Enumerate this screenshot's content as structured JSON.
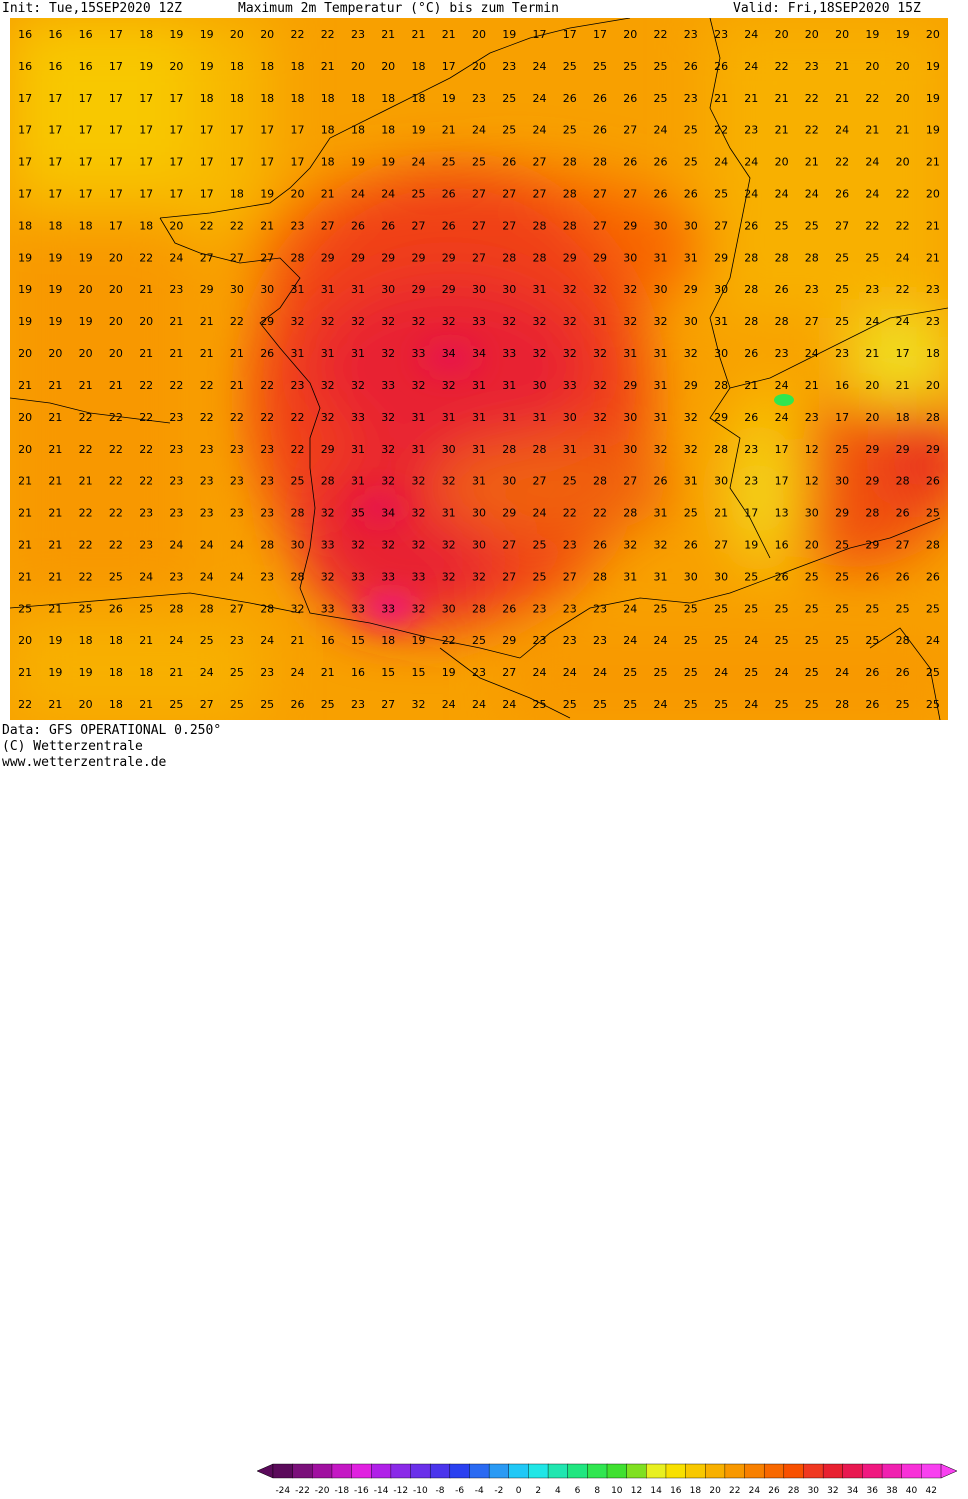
{
  "header": {
    "init": "Init: Tue,15SEP2020 12Z",
    "title": "Maximum 2m Temperatur (°C) bis zum Termin",
    "valid": "Valid: Fri,18SEP2020 15Z"
  },
  "footer": {
    "data_line": "Data: GFS OPERATIONAL 0.250°",
    "copyright": "(C) Wetterzentrale",
    "url": "www.wetterzentrale.de"
  },
  "legend": {
    "labels": [
      "-24",
      "-22",
      "-20",
      "-18",
      "-16",
      "-14",
      "-12",
      "-10",
      "-8",
      "-6",
      "-4",
      "-2",
      "0",
      "2",
      "4",
      "6",
      "8",
      "10",
      "12",
      "14",
      "16",
      "18",
      "20",
      "22",
      "24",
      "26",
      "28",
      "30",
      "32",
      "34",
      "36",
      "38",
      "40",
      "42"
    ],
    "colors": [
      "#5a0a5a",
      "#7a107a",
      "#a010a0",
      "#c418c4",
      "#e020e0",
      "#b020e8",
      "#8a2ae8",
      "#6a30ea",
      "#4a34ec",
      "#2a40f0",
      "#2a6af2",
      "#2a9af4",
      "#20c8f6",
      "#20e6e6",
      "#20e6b0",
      "#20e680",
      "#30e650",
      "#40e030",
      "#80e020",
      "#e8f020",
      "#f8e000",
      "#f8c800",
      "#f8b000",
      "#f89800",
      "#f88000",
      "#f86800",
      "#f85000",
      "#f03820",
      "#e82030",
      "#e81850",
      "#f01880",
      "#f020b0",
      "#f830d8",
      "#f840f0"
    ]
  },
  "map_grid": [
    [
      "16",
      "16",
      "16",
      "17",
      "18",
      "19",
      "19",
      "20",
      "20",
      "22",
      "22",
      "23",
      "21",
      "21",
      "21",
      "20",
      "19",
      "17",
      "17",
      "17",
      "20",
      "22",
      "23",
      "23",
      "24",
      "20",
      "20",
      "20",
      "19",
      "19",
      "20"
    ],
    [
      "16",
      "16",
      "16",
      "17",
      "19",
      "20",
      "19",
      "18",
      "18",
      "18",
      "21",
      "20",
      "20",
      "18",
      "17",
      "20",
      "23",
      "24",
      "25",
      "25",
      "25",
      "25",
      "26",
      "26",
      "24",
      "22",
      "23",
      "21",
      "20",
      "20",
      "19"
    ],
    [
      "17",
      "17",
      "17",
      "17",
      "17",
      "17",
      "18",
      "18",
      "18",
      "18",
      "18",
      "18",
      "18",
      "18",
      "19",
      "23",
      "25",
      "24",
      "26",
      "26",
      "26",
      "25",
      "23",
      "21",
      "21",
      "21",
      "22",
      "21",
      "22",
      "20",
      "19"
    ],
    [
      "17",
      "17",
      "17",
      "17",
      "17",
      "17",
      "17",
      "17",
      "17",
      "17",
      "18",
      "18",
      "18",
      "19",
      "21",
      "24",
      "25",
      "24",
      "25",
      "26",
      "27",
      "24",
      "25",
      "22",
      "23",
      "21",
      "22",
      "24",
      "21",
      "21",
      "19"
    ],
    [
      "17",
      "17",
      "17",
      "17",
      "17",
      "17",
      "17",
      "17",
      "17",
      "17",
      "18",
      "19",
      "19",
      "24",
      "25",
      "25",
      "26",
      "27",
      "28",
      "28",
      "26",
      "26",
      "25",
      "24",
      "24",
      "20",
      "21",
      "22",
      "24",
      "20",
      "21"
    ],
    [
      "17",
      "17",
      "17",
      "17",
      "17",
      "17",
      "17",
      "18",
      "19",
      "20",
      "21",
      "24",
      "24",
      "25",
      "26",
      "27",
      "27",
      "27",
      "28",
      "27",
      "27",
      "26",
      "26",
      "25",
      "24",
      "24",
      "24",
      "26",
      "24",
      "22",
      "20"
    ],
    [
      "18",
      "18",
      "18",
      "17",
      "18",
      "20",
      "22",
      "22",
      "21",
      "23",
      "27",
      "26",
      "26",
      "27",
      "26",
      "27",
      "27",
      "28",
      "28",
      "27",
      "29",
      "30",
      "30",
      "27",
      "26",
      "25",
      "25",
      "27",
      "22",
      "22",
      "21"
    ],
    [
      "19",
      "19",
      "19",
      "20",
      "22",
      "24",
      "27",
      "27",
      "27",
      "28",
      "29",
      "29",
      "29",
      "29",
      "29",
      "27",
      "28",
      "28",
      "29",
      "29",
      "30",
      "31",
      "31",
      "29",
      "28",
      "28",
      "28",
      "25",
      "25",
      "24",
      "21"
    ],
    [
      "19",
      "19",
      "20",
      "20",
      "21",
      "23",
      "29",
      "30",
      "30",
      "31",
      "31",
      "31",
      "30",
      "29",
      "29",
      "30",
      "30",
      "31",
      "32",
      "32",
      "32",
      "30",
      "29",
      "30",
      "28",
      "26",
      "23",
      "25",
      "23",
      "22",
      "23"
    ],
    [
      "19",
      "19",
      "19",
      "20",
      "20",
      "21",
      "21",
      "22",
      "29",
      "32",
      "32",
      "32",
      "32",
      "32",
      "32",
      "33",
      "32",
      "32",
      "32",
      "31",
      "32",
      "32",
      "30",
      "31",
      "28",
      "28",
      "27",
      "25",
      "24",
      "24",
      "23"
    ],
    [
      "20",
      "20",
      "20",
      "20",
      "21",
      "21",
      "21",
      "21",
      "26",
      "31",
      "31",
      "31",
      "32",
      "33",
      "34",
      "34",
      "33",
      "32",
      "32",
      "32",
      "31",
      "31",
      "32",
      "30",
      "26",
      "23",
      "24",
      "23",
      "21",
      "17",
      "18"
    ],
    [
      "21",
      "21",
      "21",
      "21",
      "22",
      "22",
      "22",
      "21",
      "22",
      "23",
      "32",
      "32",
      "33",
      "32",
      "32",
      "31",
      "31",
      "30",
      "33",
      "32",
      "29",
      "31",
      "29",
      "28",
      "21",
      "24",
      "21",
      "16",
      "20",
      "21",
      "20"
    ],
    [
      "20",
      "21",
      "22",
      "22",
      "22",
      "23",
      "22",
      "22",
      "22",
      "22",
      "32",
      "33",
      "32",
      "31",
      "31",
      "31",
      "31",
      "31",
      "30",
      "32",
      "30",
      "31",
      "32",
      "29",
      "26",
      "24",
      "23",
      "17",
      "20",
      "18",
      "28"
    ],
    [
      "20",
      "21",
      "22",
      "22",
      "22",
      "23",
      "23",
      "23",
      "23",
      "22",
      "29",
      "31",
      "32",
      "31",
      "30",
      "31",
      "28",
      "28",
      "31",
      "31",
      "30",
      "32",
      "32",
      "28",
      "23",
      "17",
      "12",
      "25",
      "29",
      "29",
      "29"
    ],
    [
      "21",
      "21",
      "21",
      "22",
      "22",
      "23",
      "23",
      "23",
      "23",
      "25",
      "28",
      "31",
      "32",
      "32",
      "32",
      "31",
      "30",
      "27",
      "25",
      "28",
      "27",
      "26",
      "31",
      "30",
      "23",
      "17",
      "12",
      "30",
      "29",
      "28",
      "26"
    ],
    [
      "21",
      "21",
      "22",
      "22",
      "23",
      "23",
      "23",
      "23",
      "23",
      "28",
      "32",
      "35",
      "34",
      "32",
      "31",
      "30",
      "29",
      "24",
      "22",
      "22",
      "28",
      "31",
      "25",
      "21",
      "17",
      "13",
      "30",
      "29",
      "28",
      "26",
      "25"
    ],
    [
      "21",
      "21",
      "22",
      "22",
      "23",
      "24",
      "24",
      "24",
      "28",
      "30",
      "33",
      "32",
      "32",
      "32",
      "32",
      "30",
      "27",
      "25",
      "23",
      "26",
      "32",
      "32",
      "26",
      "27",
      "19",
      "16",
      "20",
      "25",
      "29",
      "27",
      "28"
    ],
    [
      "21",
      "21",
      "22",
      "25",
      "24",
      "23",
      "24",
      "24",
      "23",
      "28",
      "32",
      "33",
      "33",
      "33",
      "32",
      "32",
      "27",
      "25",
      "27",
      "28",
      "31",
      "31",
      "30",
      "30",
      "25",
      "26",
      "25",
      "25",
      "26",
      "26",
      "26"
    ],
    [
      "25",
      "21",
      "25",
      "26",
      "25",
      "28",
      "28",
      "27",
      "28",
      "32",
      "33",
      "33",
      "33",
      "32",
      "30",
      "28",
      "26",
      "23",
      "23",
      "23",
      "24",
      "25",
      "25",
      "25",
      "25",
      "25",
      "25",
      "25",
      "25",
      "25",
      "25"
    ],
    [
      "20",
      "19",
      "18",
      "18",
      "21",
      "24",
      "25",
      "23",
      "24",
      "21",
      "16",
      "15",
      "18",
      "19",
      "22",
      "25",
      "29",
      "23",
      "23",
      "23",
      "24",
      "24",
      "25",
      "25",
      "24",
      "25",
      "25",
      "25",
      "25",
      "28",
      "24"
    ],
    [
      "21",
      "19",
      "19",
      "18",
      "18",
      "21",
      "24",
      "25",
      "23",
      "24",
      "21",
      "16",
      "15",
      "15",
      "19",
      "23",
      "27",
      "24",
      "24",
      "24",
      "25",
      "25",
      "25",
      "24",
      "25",
      "24",
      "25",
      "24",
      "26",
      "26",
      "25"
    ],
    [
      "22",
      "21",
      "20",
      "18",
      "21",
      "25",
      "27",
      "25",
      "25",
      "26",
      "25",
      "23",
      "27",
      "32",
      "24",
      "24",
      "24",
      "25",
      "25",
      "25",
      "25",
      "24",
      "25",
      "25",
      "24",
      "25",
      "25",
      "28",
      "26",
      "25",
      "25"
    ]
  ]
}
